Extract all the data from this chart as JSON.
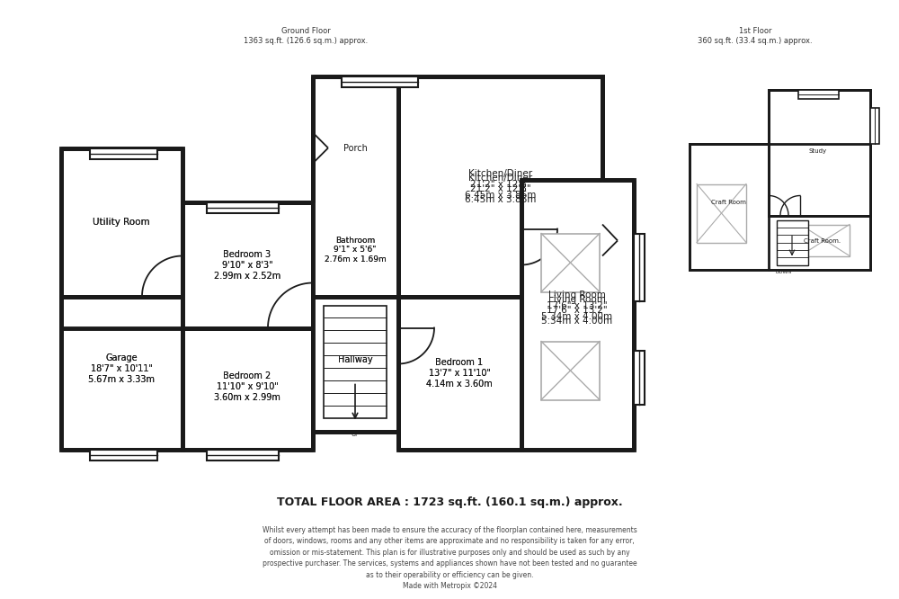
{
  "bg_color": "#ffffff",
  "wall_color": "#1a1a1a",
  "ground_floor_label": "Ground Floor\n1363 sq.ft. (126.6 sq.m.) approx.",
  "first_floor_label": "1st Floor\n360 sq.ft. (33.4 sq.m.) approx.",
  "title_text": "TOTAL FLOOR AREA : 1723 sq.ft. (160.1 sq.m.) approx.",
  "disclaimer": "Whilst every attempt has been made to ensure the accuracy of the floorplan contained here, measurements\nof doors, windows, rooms and any other items are approximate and no responsibility is taken for any error,\nomission or mis-statement. This plan is for illustrative purposes only and should be used as such by any\nprospective purchaser. The services, systems and appliances shown have not been tested and no guarantee\nas to their operability or efficiency can be given.\nMade with Metropix ©2024"
}
